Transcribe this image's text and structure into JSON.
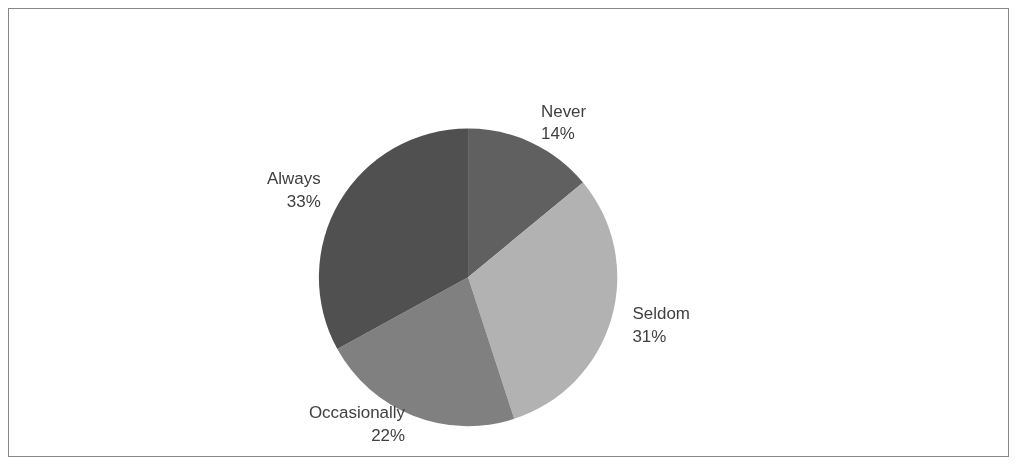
{
  "chart_data": {
    "type": "pie",
    "categories": [
      "Never",
      "Seldom",
      "Occasionally",
      "Always"
    ],
    "values": [
      14,
      31,
      22,
      33
    ],
    "colors": [
      "#606060",
      "#b2b2b2",
      "#808080",
      "#505050"
    ],
    "value_labels": [
      "14%",
      "31%",
      "22%",
      "33%"
    ],
    "legend": false
  }
}
